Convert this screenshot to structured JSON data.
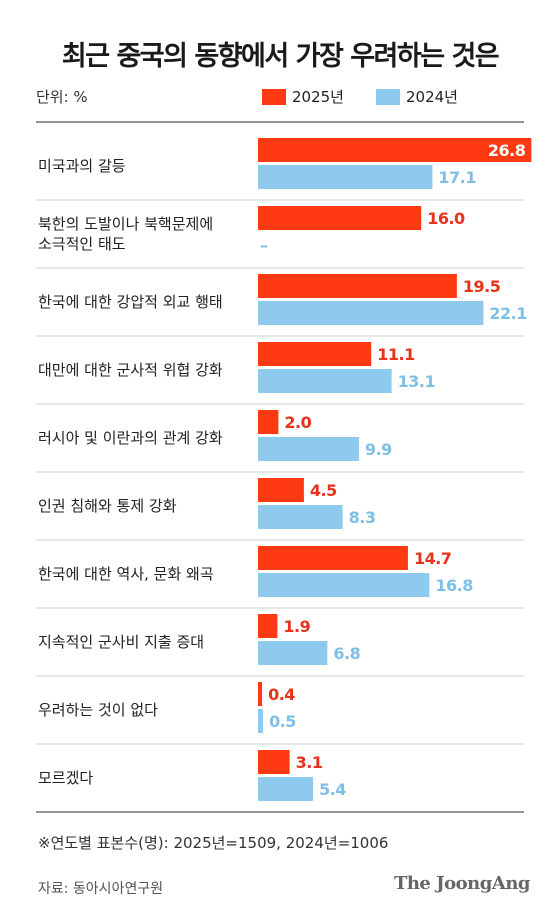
{
  "title": "최근 중국의 동향에서 가장 우려하는 것은",
  "unit_label": "단위: %",
  "footnote": "※연도별 표본수(명): 2025년=1509, 2024년=1006",
  "source": "자료: 동아시아연구원",
  "brand": "The JoongAng",
  "chart_data": {
    "type": "bar",
    "orientation": "horizontal",
    "categories": [
      [
        "미국과의 갈등"
      ],
      [
        "북한의 도발이나 북핵문제에",
        "소극적인 태도"
      ],
      [
        "한국에 대한 강압적 외교 행태"
      ],
      [
        "대만에 대한 군사적 위협 강화"
      ],
      [
        "러시아 및 이란과의 관계 강화"
      ],
      [
        "인권 침해와 통제 강화"
      ],
      [
        "한국에 대한 역사, 문화 왜곡"
      ],
      [
        "지속적인 군사비 지출 증대"
      ],
      [
        "우려하는 것이 없다"
      ],
      [
        "모르겠다"
      ]
    ],
    "series": [
      {
        "name": "2025년",
        "color": "#ff3a12",
        "values": [
          26.8,
          16.0,
          19.5,
          11.1,
          2.0,
          4.5,
          14.7,
          1.9,
          0.4,
          3.1
        ],
        "labels": [
          "26.8",
          "16.0",
          "19.5",
          "11.1",
          "2.0",
          "4.5",
          "14.7",
          "1.9",
          "0.4",
          "3.1"
        ]
      },
      {
        "name": "2024년",
        "color": "#8ec9ee",
        "values": [
          17.1,
          null,
          22.1,
          13.1,
          9.9,
          8.3,
          16.8,
          6.8,
          0.5,
          5.4
        ],
        "labels": [
          "17.1",
          "–",
          "22.1",
          "13.1",
          "9.9",
          "8.3",
          "16.8",
          "6.8",
          "0.5",
          "5.4"
        ]
      }
    ],
    "label_colors": {
      "2025년": "#e8321a",
      "2024년": "#7fbfe6",
      "inside": "#ffffff"
    },
    "legend": "top-right",
    "grid": false
  }
}
